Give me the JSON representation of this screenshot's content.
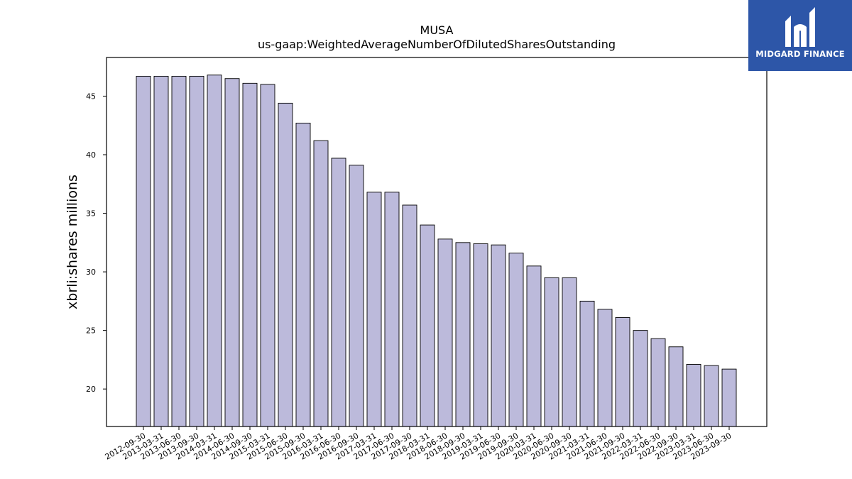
{
  "brand": {
    "name": "MIDGARD FINANCE",
    "bg_color": "#2d56a8"
  },
  "chart_data": {
    "type": "bar",
    "title": "MUSA",
    "subtitle": "us-gaap:WeightedAverageNumberOfDilutedSharesOutstanding",
    "xlabel": "",
    "ylabel": "xbrli:shares millions",
    "ylim": [
      16.8,
      48.3
    ],
    "yticks": [
      20,
      25,
      30,
      35,
      40,
      45
    ],
    "bar_color": "#bcbadb",
    "edge_color": "#000000",
    "categories": [
      "2012-09-30",
      "2013-03-31",
      "2013-06-30",
      "2013-09-30",
      "2014-03-31",
      "2014-06-30",
      "2014-09-30",
      "2015-03-31",
      "2015-06-30",
      "2015-09-30",
      "2016-03-31",
      "2016-06-30",
      "2016-09-30",
      "2017-03-31",
      "2017-06-30",
      "2017-09-30",
      "2018-03-31",
      "2018-06-30",
      "2018-09-30",
      "2019-03-31",
      "2019-06-30",
      "2019-09-30",
      "2020-03-31",
      "2020-06-30",
      "2020-09-30",
      "2021-03-31",
      "2021-06-30",
      "2021-09-30",
      "2022-03-31",
      "2022-06-30",
      "2022-09-30",
      "2023-03-31",
      "2023-06-30",
      "2023-09-30"
    ],
    "values": [
      46.7,
      46.7,
      46.7,
      46.7,
      46.8,
      46.5,
      46.1,
      46.0,
      44.4,
      42.7,
      41.2,
      39.7,
      39.1,
      36.8,
      36.8,
      35.7,
      34.0,
      32.8,
      32.5,
      32.4,
      32.3,
      31.6,
      30.5,
      29.5,
      29.5,
      27.5,
      26.8,
      26.1,
      25.0,
      24.3,
      23.6,
      22.1,
      22.0,
      21.7
    ]
  }
}
